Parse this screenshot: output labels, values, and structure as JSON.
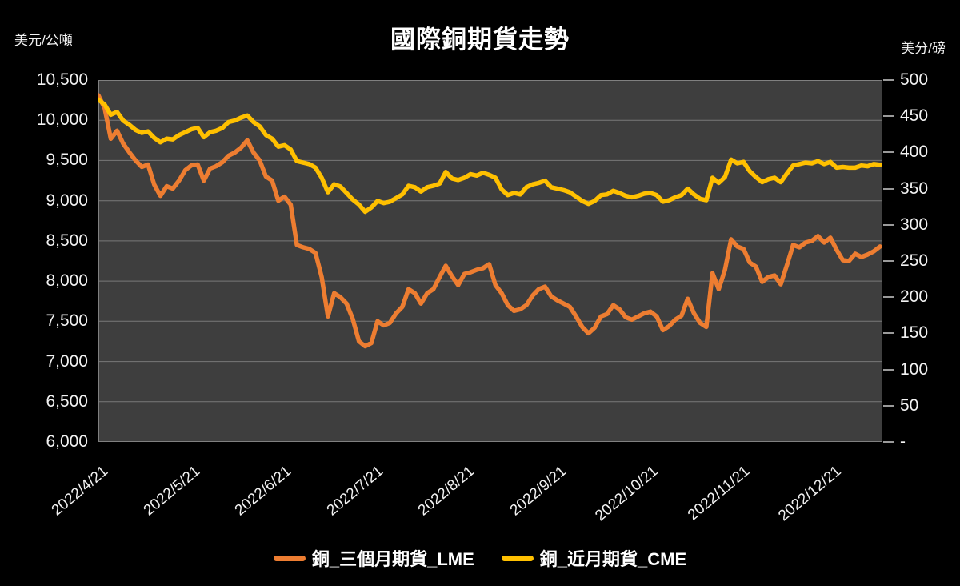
{
  "page": {
    "background": "#000000",
    "plot_background": "#3E3E3E",
    "gridline_color": "#787878",
    "plot_border_color": "#808080",
    "text_color": "#F2F2F2"
  },
  "chart_data": {
    "type": "line",
    "title": "國際銅期貨走勢",
    "grid": "horizontal",
    "legend_position": "bottom",
    "left_axis": {
      "unit": "美元/公噸",
      "min": 6000,
      "max": 10500,
      "step": 500,
      "tick_labels": [
        "10,500",
        "10,000",
        "9,500",
        "9,000",
        "8,500",
        "8,000",
        "7,500",
        "7,000",
        "6,500",
        "6,000"
      ]
    },
    "right_axis": {
      "unit": "美分/磅",
      "min": 0,
      "max": 500,
      "step": 50,
      "tick_labels": [
        "500",
        "450",
        "400",
        "350",
        "300",
        "250",
        "200",
        "150",
        "100",
        "50",
        "-"
      ]
    },
    "x_axis": {
      "tick_labels": [
        "2022/4/21",
        "2022/5/21",
        "2022/6/21",
        "2022/7/21",
        "2022/8/21",
        "2022/9/21",
        "2022/10/21",
        "2022/11/21",
        "2022/12/21"
      ],
      "label_rotation_deg": -40
    },
    "dates": [
      "2022/4/21",
      "2022/4/23",
      "2022/4/25",
      "2022/4/27",
      "2022/4/29",
      "2022/5/1",
      "2022/5/3",
      "2022/5/5",
      "2022/5/7",
      "2022/5/9",
      "2022/5/11",
      "2022/5/13",
      "2022/5/15",
      "2022/5/17",
      "2022/5/19",
      "2022/5/21",
      "2022/5/23",
      "2022/5/25",
      "2022/5/27",
      "2022/5/29",
      "2022/5/31",
      "2022/6/2",
      "2022/6/4",
      "2022/6/6",
      "2022/6/8",
      "2022/6/10",
      "2022/6/12",
      "2022/6/14",
      "2022/6/16",
      "2022/6/18",
      "2022/6/20",
      "2022/6/22",
      "2022/6/24",
      "2022/6/26",
      "2022/6/28",
      "2022/6/30",
      "2022/7/2",
      "2022/7/4",
      "2022/7/6",
      "2022/7/8",
      "2022/7/10",
      "2022/7/12",
      "2022/7/14",
      "2022/7/16",
      "2022/7/18",
      "2022/7/20",
      "2022/7/22",
      "2022/7/24",
      "2022/7/26",
      "2022/7/28",
      "2022/7/30",
      "2022/8/1",
      "2022/8/3",
      "2022/8/5",
      "2022/8/7",
      "2022/8/9",
      "2022/8/11",
      "2022/8/13",
      "2022/8/15",
      "2022/8/17",
      "2022/8/19",
      "2022/8/21",
      "2022/8/23",
      "2022/8/25",
      "2022/8/27",
      "2022/8/29",
      "2022/8/31",
      "2022/9/2",
      "2022/9/4",
      "2022/9/6",
      "2022/9/8",
      "2022/9/10",
      "2022/9/12",
      "2022/9/14",
      "2022/9/16",
      "2022/9/18",
      "2022/9/20",
      "2022/9/22",
      "2022/9/24",
      "2022/9/26",
      "2022/9/28",
      "2022/9/30",
      "2022/10/2",
      "2022/10/4",
      "2022/10/6",
      "2022/10/8",
      "2022/10/10",
      "2022/10/12",
      "2022/10/14",
      "2022/10/16",
      "2022/10/18",
      "2022/10/20",
      "2022/10/22",
      "2022/10/24",
      "2022/10/26",
      "2022/10/28",
      "2022/10/30",
      "2022/11/1",
      "2022/11/3",
      "2022/11/5",
      "2022/11/7",
      "2022/11/9",
      "2022/11/11",
      "2022/11/13",
      "2022/11/15",
      "2022/11/17",
      "2022/11/19",
      "2022/11/21",
      "2022/11/23",
      "2022/11/25",
      "2022/11/27",
      "2022/11/29",
      "2022/12/1",
      "2022/12/3",
      "2022/12/5",
      "2022/12/7",
      "2022/12/9",
      "2022/12/11",
      "2022/12/13",
      "2022/12/15",
      "2022/12/17",
      "2022/12/19",
      "2022/12/21",
      "2022/12/23",
      "2022/12/25",
      "2022/12/27",
      "2022/12/29"
    ],
    "series": [
      {
        "name": "銅_三個月期貨_LME",
        "axis": "left",
        "color": "#ED7D31",
        "stroke_width": 5.5,
        "values": [
          10310,
          10150,
          9770,
          9870,
          9710,
          9600,
          9500,
          9420,
          9450,
          9200,
          9060,
          9180,
          9150,
          9250,
          9380,
          9440,
          9450,
          9250,
          9400,
          9430,
          9480,
          9560,
          9600,
          9660,
          9750,
          9600,
          9500,
          9300,
          9250,
          9000,
          9050,
          8950,
          8450,
          8420,
          8400,
          8350,
          8050,
          7560,
          7850,
          7800,
          7720,
          7530,
          7250,
          7190,
          7230,
          7500,
          7450,
          7480,
          7600,
          7680,
          7900,
          7850,
          7720,
          7850,
          7900,
          8050,
          8190,
          8060,
          7950,
          8090,
          8110,
          8140,
          8160,
          8210,
          7950,
          7850,
          7700,
          7630,
          7650,
          7700,
          7820,
          7900,
          7930,
          7810,
          7760,
          7720,
          7680,
          7560,
          7430,
          7350,
          7420,
          7560,
          7590,
          7700,
          7650,
          7550,
          7520,
          7560,
          7600,
          7620,
          7560,
          7390,
          7440,
          7520,
          7570,
          7780,
          7600,
          7480,
          7430,
          8100,
          7900,
          8140,
          8520,
          8430,
          8400,
          8230,
          8180,
          7990,
          8050,
          8070,
          7960,
          8200,
          8450,
          8420,
          8480,
          8500,
          8560,
          8480,
          8540,
          8390,
          8260,
          8250,
          8340,
          8300,
          8330,
          8370,
          8430
        ]
      },
      {
        "name": "銅_近月期貨_CME",
        "axis": "right",
        "color": "#FFC000",
        "stroke_width": 5.5,
        "values": [
          473,
          466,
          452,
          456,
          444,
          438,
          431,
          427,
          429,
          420,
          414,
          419,
          418,
          424,
          428,
          432,
          434,
          421,
          428,
          430,
          434,
          442,
          444,
          448,
          451,
          442,
          436,
          424,
          419,
          408,
          410,
          404,
          388,
          386,
          384,
          379,
          365,
          345,
          356,
          353,
          344,
          335,
          328,
          318,
          324,
          333,
          330,
          332,
          337,
          342,
          354,
          352,
          346,
          352,
          354,
          357,
          373,
          364,
          362,
          365,
          370,
          368,
          372,
          369,
          365,
          349,
          341,
          344,
          342,
          352,
          356,
          358,
          361,
          352,
          350,
          348,
          345,
          339,
          333,
          329,
          333,
          341,
          342,
          347,
          344,
          340,
          338,
          340,
          343,
          344,
          341,
          332,
          334,
          338,
          341,
          350,
          342,
          336,
          334,
          365,
          358,
          366,
          390,
          385,
          387,
          374,
          366,
          359,
          363,
          365,
          359,
          371,
          382,
          384,
          386,
          385,
          388,
          384,
          387,
          379,
          380,
          379,
          379,
          382,
          381,
          384,
          383
        ]
      }
    ]
  }
}
